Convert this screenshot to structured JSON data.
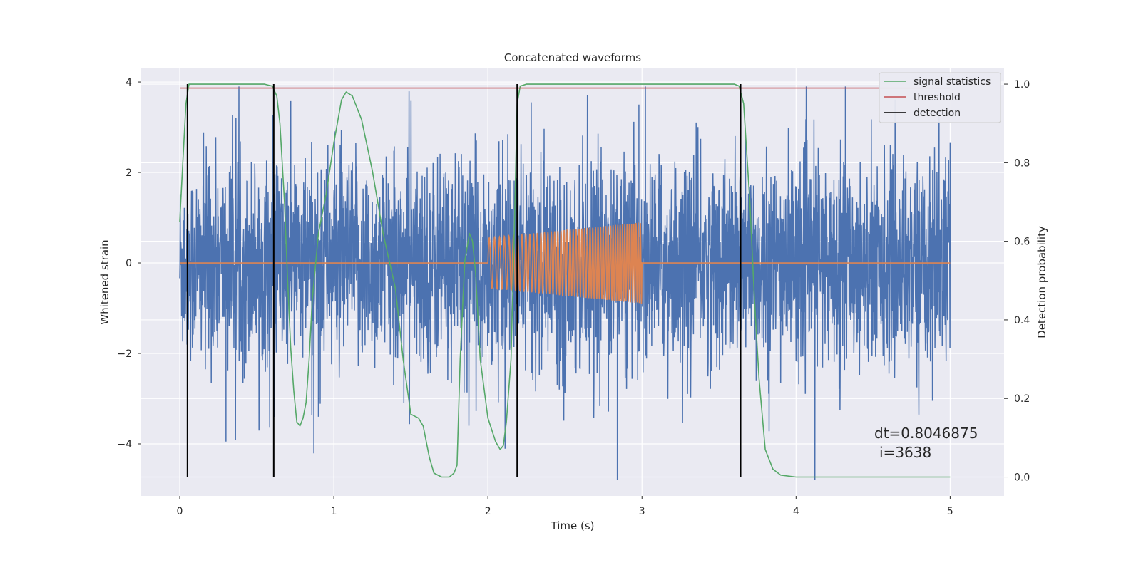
{
  "chart_data": {
    "type": "line",
    "title": "Concatenated waveforms",
    "xlabel": "Time (s)",
    "ylabel": "Whitened strain",
    "y2label": "Detection probability",
    "xlim": [
      -0.25,
      5.35
    ],
    "ylim": [
      -5.15,
      4.3
    ],
    "y2lim": [
      -0.048,
      1.04
    ],
    "x_ticks": [
      0,
      1,
      2,
      3,
      4,
      5
    ],
    "y_ticks": [
      -4,
      -2,
      0,
      2,
      4
    ],
    "y2_ticks": [
      0.0,
      0.2,
      0.4,
      0.6,
      0.8,
      1.0
    ],
    "x_tick_labels": [
      "0",
      "1",
      "2",
      "3",
      "4",
      "5"
    ],
    "y_tick_labels": [
      "−4",
      "−2",
      "0",
      "2",
      "4"
    ],
    "y2_tick_labels": [
      "0.0",
      "0.2",
      "0.4",
      "0.6",
      "0.8",
      "1.0"
    ],
    "grid": true,
    "legend_position": "top-right",
    "colors": {
      "strain": "#4c72b0",
      "injected_waveform": "#dd8452",
      "signal_statistics": "#55a868",
      "threshold": "#c44e52",
      "detection": "#000000",
      "plot_background": "#eaeaf2",
      "grid": "#ffffff"
    },
    "series": [
      {
        "name": "signal statistics",
        "axis": "right",
        "x": [
          0.0,
          0.02,
          0.04,
          0.06,
          0.08,
          0.12,
          0.2,
          0.3,
          0.4,
          0.5,
          0.55,
          0.6,
          0.63,
          0.65,
          0.68,
          0.7,
          0.72,
          0.74,
          0.76,
          0.78,
          0.8,
          0.82,
          0.84,
          0.86,
          0.9,
          0.95,
          1.0,
          1.05,
          1.08,
          1.12,
          1.18,
          1.25,
          1.32,
          1.4,
          1.45,
          1.5,
          1.55,
          1.58,
          1.62,
          1.65,
          1.7,
          1.75,
          1.78,
          1.8,
          1.82,
          1.85,
          1.88,
          1.9,
          1.92,
          1.95,
          2.0,
          2.05,
          2.08,
          2.1,
          2.12,
          2.15,
          2.17,
          2.19,
          2.21,
          2.25,
          2.3,
          2.5,
          3.0,
          3.5,
          3.6,
          3.63,
          3.66,
          3.7,
          3.73,
          3.76,
          3.8,
          3.85,
          3.9,
          4.0,
          4.5,
          5.0
        ],
        "values": [
          0.65,
          0.8,
          0.95,
          1.0,
          1.0,
          1.0,
          1.0,
          1.0,
          1.0,
          1.0,
          1.0,
          0.995,
          0.97,
          0.9,
          0.7,
          0.5,
          0.33,
          0.22,
          0.14,
          0.13,
          0.15,
          0.19,
          0.3,
          0.45,
          0.62,
          0.72,
          0.85,
          0.96,
          0.98,
          0.97,
          0.91,
          0.78,
          0.62,
          0.48,
          0.3,
          0.16,
          0.15,
          0.13,
          0.05,
          0.01,
          0.0,
          0.0,
          0.01,
          0.03,
          0.3,
          0.55,
          0.62,
          0.6,
          0.52,
          0.3,
          0.15,
          0.09,
          0.07,
          0.08,
          0.14,
          0.3,
          0.6,
          0.95,
          0.995,
          1.0,
          1.0,
          1.0,
          1.0,
          1.0,
          1.0,
          0.995,
          0.95,
          0.7,
          0.45,
          0.25,
          0.07,
          0.02,
          0.005,
          0.0,
          0.0,
          0.0
        ]
      },
      {
        "name": "threshold",
        "axis": "right",
        "x": [
          0.0,
          5.0
        ],
        "values": [
          0.99,
          0.99
        ]
      },
      {
        "name": "detection",
        "axis": "right",
        "type": "vlines",
        "x": [
          0.05,
          0.61,
          2.19,
          3.64
        ],
        "ymin": 0.0,
        "ymax": 1.0
      },
      {
        "axis": "left",
        "type": "noise",
        "x_range": [
          0.0,
          5.0
        ],
        "envelope": 2.6,
        "min": -4.8,
        "max": 3.9
      },
      {
        "axis": "left",
        "type": "chirp",
        "x": [
          0.0,
          2.0,
          2.0,
          3.0,
          3.0,
          5.0
        ],
        "amplitude": [
          0.0,
          0.0,
          0.55,
          0.9,
          0.0,
          0.0
        ]
      }
    ],
    "annotations": [
      "dt=0.8046875",
      "i=3638"
    ]
  }
}
